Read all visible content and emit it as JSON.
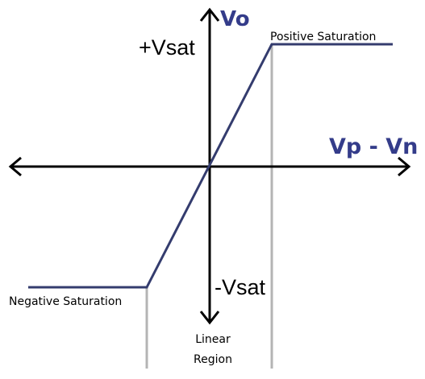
{
  "diagram": {
    "y_axis_label": "Vo",
    "x_axis_label": "Vp - Vn",
    "pos_vsat_label": "+Vsat",
    "neg_vsat_label": "-Vsat",
    "positive_saturation_label": "Positive Saturation",
    "negative_saturation_label": "Negative Saturation",
    "linear_region_label_line1": "Linear",
    "linear_region_label_line2": "Region"
  },
  "colors": {
    "axis": "#000000",
    "curve": "#343c6e",
    "boundary": "#b4b4b4",
    "title": "#343c8a"
  }
}
